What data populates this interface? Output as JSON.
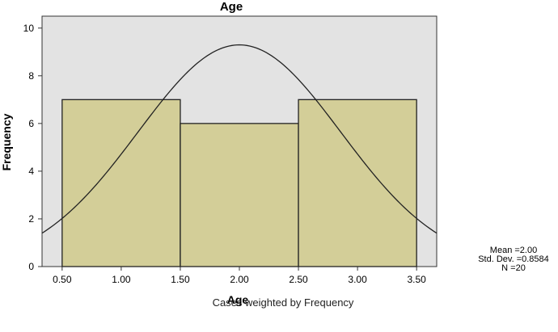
{
  "chart_data": {
    "type": "bar",
    "title": "Age",
    "xlabel": "Age",
    "ylabel": "Frequency",
    "xlim": [
      0.33,
      3.67
    ],
    "ylim": [
      0,
      10.5
    ],
    "x_ticks": [
      "0.50",
      "1.00",
      "1.50",
      "2.00",
      "2.50",
      "3.00",
      "3.50"
    ],
    "y_ticks": [
      "0",
      "2",
      "4",
      "6",
      "8",
      "10"
    ],
    "bins": [
      {
        "from": 0.5,
        "to": 1.5,
        "value": 7
      },
      {
        "from": 1.5,
        "to": 2.5,
        "value": 6
      },
      {
        "from": 2.5,
        "to": 3.5,
        "value": 7
      }
    ],
    "normal_curve": {
      "mean": 2.0,
      "std_dev": 0.8584,
      "n": 20,
      "bin_width": 1
    },
    "colors": {
      "bar_fill": "#d3ce98",
      "bar_stroke": "#222222",
      "plot_background": "#e3e3e3",
      "curve": "#222222"
    },
    "grid": false,
    "legend": "none"
  },
  "stats": {
    "mean": "Mean =2.00",
    "std_dev": "Std. Dev. =0.8584",
    "n": "N =20"
  },
  "footnote": "Cases weighted by Frequency"
}
